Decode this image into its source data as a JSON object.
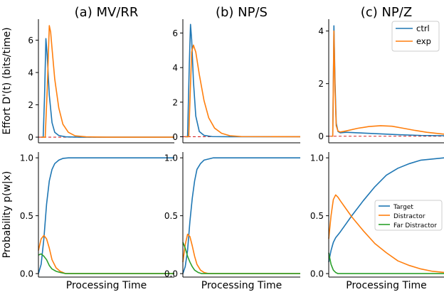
{
  "chart_data": [
    {
      "panel": "a-top",
      "title": "(a) MV/RR",
      "type": "line",
      "ylabel": "Effort D'(t) (bits/time)",
      "xlabel": "",
      "yticks": [
        0,
        2,
        4,
        6
      ],
      "ylim": [
        -0.35,
        7.3
      ],
      "xlim": [
        0,
        1
      ],
      "hline": {
        "y": 0,
        "style": "dashed",
        "color": "#d62728"
      },
      "series": [
        {
          "name": "ctrl",
          "color": "#1f77b4",
          "x": [
            0.02,
            0.035,
            0.045,
            0.055,
            0.065,
            0.08,
            0.1,
            0.12,
            0.15,
            0.2,
            0.3,
            0.5,
            1.0
          ],
          "y": [
            0,
            0,
            2.5,
            6.1,
            5.0,
            2.6,
            0.9,
            0.3,
            0.1,
            0.02,
            0,
            0,
            0
          ]
        },
        {
          "name": "exp",
          "color": "#ff7f0e",
          "x": [
            0.02,
            0.05,
            0.065,
            0.08,
            0.09,
            0.1,
            0.12,
            0.15,
            0.18,
            0.22,
            0.27,
            0.35,
            0.5,
            1.0
          ],
          "y": [
            0,
            0,
            3.0,
            6.9,
            6.5,
            5.5,
            3.6,
            1.8,
            0.8,
            0.3,
            0.08,
            0.02,
            0,
            0
          ]
        }
      ]
    },
    {
      "panel": "b-top",
      "title": "(b) NP/S",
      "type": "line",
      "ylabel": "",
      "xlabel": "",
      "yticks": [
        0,
        2,
        4,
        6
      ],
      "ylim": [
        -0.35,
        6.8
      ],
      "xlim": [
        0,
        1
      ],
      "hline": {
        "y": 0,
        "style": "dashed",
        "color": "#d62728"
      },
      "series": [
        {
          "name": "ctrl",
          "color": "#1f77b4",
          "x": [
            0.02,
            0.04,
            0.055,
            0.065,
            0.075,
            0.09,
            0.11,
            0.14,
            0.18,
            0.25,
            0.4,
            1.0
          ],
          "y": [
            0,
            0,
            4.2,
            6.5,
            5.6,
            3.2,
            1.2,
            0.3,
            0.08,
            0.01,
            0,
            0
          ]
        },
        {
          "name": "exp",
          "color": "#ff7f0e",
          "x": [
            0.02,
            0.05,
            0.065,
            0.075,
            0.09,
            0.11,
            0.14,
            0.18,
            0.22,
            0.27,
            0.33,
            0.4,
            0.5,
            1.0
          ],
          "y": [
            0,
            0,
            3.0,
            4.9,
            5.3,
            4.9,
            3.6,
            2.1,
            1.1,
            0.5,
            0.2,
            0.06,
            0.01,
            0
          ]
        }
      ]
    },
    {
      "panel": "c-top",
      "title": "(c) NP/Z",
      "type": "line",
      "ylabel": "",
      "xlabel": "",
      "yticks": [
        0,
        2,
        4
      ],
      "ylim": [
        -0.25,
        4.45
      ],
      "xlim": [
        0,
        1
      ],
      "hline": {
        "y": 0,
        "style": "dashed",
        "color": "#d62728"
      },
      "legend": {
        "position": "top-right"
      },
      "series": [
        {
          "name": "ctrl",
          "color": "#1f77b4",
          "x": [
            0.02,
            0.035,
            0.045,
            0.055,
            0.065,
            0.08,
            0.1,
            0.15,
            0.25,
            0.4,
            0.6,
            0.8,
            1.0
          ],
          "y": [
            0,
            0,
            4.2,
            2.0,
            0.5,
            0.18,
            0.13,
            0.15,
            0.13,
            0.1,
            0.06,
            0.03,
            0.02
          ]
        },
        {
          "name": "exp",
          "color": "#ff7f0e",
          "x": [
            0.02,
            0.035,
            0.045,
            0.055,
            0.065,
            0.08,
            0.1,
            0.15,
            0.25,
            0.35,
            0.45,
            0.55,
            0.65,
            0.75,
            0.85,
            1.0
          ],
          "y": [
            0,
            0,
            4.0,
            1.7,
            0.4,
            0.2,
            0.16,
            0.2,
            0.3,
            0.37,
            0.4,
            0.38,
            0.3,
            0.22,
            0.15,
            0.08
          ]
        }
      ]
    },
    {
      "panel": "a-bottom",
      "title": "",
      "type": "line",
      "ylabel": "Probability p(w|x)",
      "xlabel": "Processing Time",
      "yticks": [
        0.0,
        0.5,
        1.0
      ],
      "ylim": [
        -0.03,
        1.05
      ],
      "xlim": [
        0,
        1
      ],
      "series": [
        {
          "name": "Target",
          "color": "#1f77b4",
          "x": [
            0.0,
            0.02,
            0.04,
            0.06,
            0.08,
            0.1,
            0.12,
            0.15,
            0.18,
            0.22,
            0.3,
            0.5,
            1.0
          ],
          "y": [
            0.0,
            0.08,
            0.3,
            0.6,
            0.8,
            0.9,
            0.95,
            0.98,
            0.995,
            1.0,
            1.0,
            1.0,
            1.0
          ]
        },
        {
          "name": "Distractor",
          "color": "#ff7f0e",
          "x": [
            0.0,
            0.02,
            0.04,
            0.06,
            0.08,
            0.1,
            0.13,
            0.16,
            0.2,
            0.25,
            0.3,
            0.5,
            1.0
          ],
          "y": [
            0.2,
            0.3,
            0.33,
            0.3,
            0.22,
            0.12,
            0.05,
            0.02,
            0.0,
            0.0,
            0.0,
            0.0,
            0.0
          ]
        },
        {
          "name": "Far Distractor",
          "color": "#2ca02c",
          "x": [
            0.0,
            0.02,
            0.04,
            0.06,
            0.08,
            0.1,
            0.13,
            0.16,
            0.2,
            0.3,
            0.5,
            1.0
          ],
          "y": [
            0.16,
            0.17,
            0.15,
            0.12,
            0.07,
            0.04,
            0.02,
            0.01,
            0.0,
            0.0,
            0.0,
            0.0
          ]
        }
      ]
    },
    {
      "panel": "b-bottom",
      "title": "",
      "type": "line",
      "ylabel": "",
      "xlabel": "Processing Time",
      "yticks": [
        0.0,
        0.5,
        1.0
      ],
      "ylim": [
        -0.03,
        1.05
      ],
      "xlim": [
        0,
        1
      ],
      "series": [
        {
          "name": "Target",
          "color": "#1f77b4",
          "x": [
            0.0,
            0.02,
            0.04,
            0.06,
            0.08,
            0.1,
            0.12,
            0.15,
            0.18,
            0.22,
            0.26,
            0.3,
            0.4,
            0.6,
            1.0
          ],
          "y": [
            0.0,
            0.06,
            0.2,
            0.45,
            0.65,
            0.8,
            0.9,
            0.95,
            0.98,
            0.99,
            1.0,
            1.0,
            1.0,
            1.0,
            1.0
          ]
        },
        {
          "name": "Distractor",
          "color": "#ff7f0e",
          "x": [
            0.0,
            0.02,
            0.04,
            0.06,
            0.08,
            0.1,
            0.12,
            0.15,
            0.18,
            0.22,
            0.3,
            0.5,
            1.0
          ],
          "y": [
            0.1,
            0.25,
            0.34,
            0.32,
            0.24,
            0.15,
            0.08,
            0.03,
            0.01,
            0.0,
            0.0,
            0.0,
            0.0
          ]
        },
        {
          "name": "Far Distractor",
          "color": "#2ca02c",
          "x": [
            0.0,
            0.02,
            0.04,
            0.06,
            0.08,
            0.1,
            0.13,
            0.16,
            0.2,
            0.3,
            0.5,
            1.0
          ],
          "y": [
            0.27,
            0.22,
            0.15,
            0.1,
            0.06,
            0.03,
            0.01,
            0.0,
            0.0,
            0.0,
            0.0,
            0.0
          ]
        }
      ]
    },
    {
      "panel": "c-bottom",
      "title": "",
      "type": "line",
      "ylabel": "",
      "xlabel": "Processing Time",
      "yticks": [
        0.0,
        0.5,
        1.0
      ],
      "ylim": [
        -0.03,
        1.05
      ],
      "xlim": [
        0,
        1
      ],
      "legend": {
        "position": "center-right"
      },
      "series": [
        {
          "name": "Target",
          "color": "#1f77b4",
          "x": [
            0.0,
            0.02,
            0.04,
            0.06,
            0.1,
            0.15,
            0.2,
            0.3,
            0.4,
            0.5,
            0.6,
            0.7,
            0.8,
            0.9,
            1.0
          ],
          "y": [
            0.1,
            0.2,
            0.27,
            0.31,
            0.36,
            0.43,
            0.5,
            0.63,
            0.75,
            0.85,
            0.91,
            0.95,
            0.98,
            0.99,
            1.0
          ]
        },
        {
          "name": "Distractor",
          "color": "#ff7f0e",
          "x": [
            0.0,
            0.02,
            0.04,
            0.06,
            0.08,
            0.1,
            0.15,
            0.2,
            0.3,
            0.4,
            0.5,
            0.6,
            0.7,
            0.8,
            0.9,
            1.0
          ],
          "y": [
            0.3,
            0.5,
            0.64,
            0.68,
            0.66,
            0.63,
            0.56,
            0.49,
            0.37,
            0.26,
            0.18,
            0.11,
            0.07,
            0.04,
            0.02,
            0.01
          ]
        },
        {
          "name": "Far Distractor",
          "color": "#2ca02c",
          "x": [
            0.0,
            0.02,
            0.04,
            0.06,
            0.08,
            0.1,
            0.15,
            0.3,
            1.0
          ],
          "y": [
            0.18,
            0.08,
            0.03,
            0.01,
            0.0,
            0.0,
            0.0,
            0.0,
            0.0
          ]
        }
      ]
    }
  ]
}
